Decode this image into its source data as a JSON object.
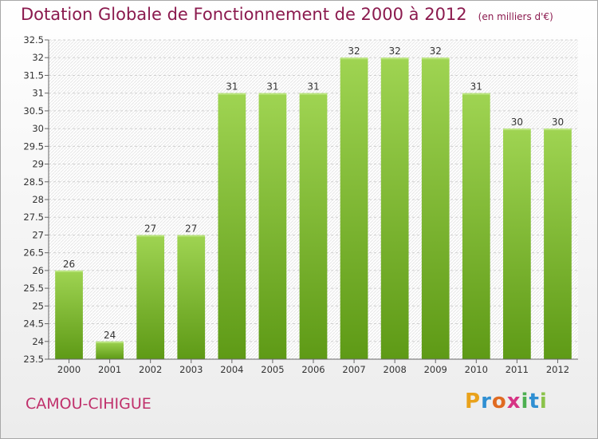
{
  "title": "Dotation Globale de Fonctionnement de 2000 à 2012",
  "unit_note": "(en milliers d'€)",
  "commune": "CAMOU-CIHIGUE",
  "logo": {
    "letters": [
      "P",
      "r",
      "o",
      "x",
      "i",
      "t",
      "i"
    ],
    "colors": [
      "#e9a21b",
      "#2f8fd2",
      "#e06b22",
      "#d63384",
      "#4caf50",
      "#2f8fd2",
      "#8bc34a"
    ]
  },
  "colors": {
    "bar_top": "#9fd452",
    "bar_bottom": "#5e9a16",
    "title": "#8b1a4e",
    "commune": "#c0306b"
  },
  "chart_data": {
    "type": "bar",
    "title": "Dotation Globale de Fonctionnement de 2000 à 2012",
    "unit": "(en milliers d'€)",
    "categories": [
      "2000",
      "2001",
      "2002",
      "2003",
      "2004",
      "2005",
      "2006",
      "2007",
      "2008",
      "2009",
      "2010",
      "2011",
      "2012"
    ],
    "values": [
      26,
      24,
      27,
      27,
      31,
      31,
      31,
      32,
      32,
      32,
      31,
      30,
      30
    ],
    "ylim": [
      23.5,
      32.5
    ],
    "yticks": [
      "23.5",
      "24",
      "24.5",
      "25",
      "25.5",
      "26",
      "26.5",
      "27",
      "27.5",
      "28",
      "28.5",
      "29",
      "29.5",
      "30",
      "30.5",
      "31",
      "31.5",
      "32",
      "32.5"
    ],
    "grid": true
  }
}
